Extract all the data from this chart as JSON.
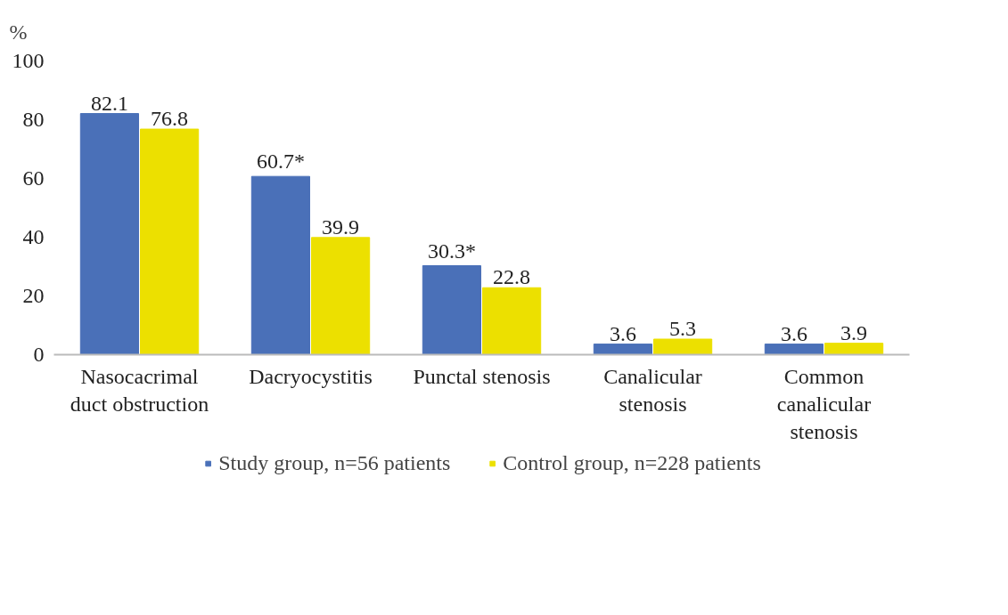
{
  "chart_data": {
    "type": "bar",
    "ylabel": "%",
    "categories": [
      "Nasocacrimal duct obstruction",
      "Dacryocystitis",
      "Punctal stenosis",
      "Canalicular stenosis",
      "Common canalicular stenosis"
    ],
    "series": [
      {
        "name": "Study group, n=56 patients",
        "color": "#4a70b8",
        "values": [
          82.1,
          60.7,
          30.3,
          3.6,
          3.6
        ],
        "value_labels": [
          "82.1",
          "60.7*",
          "30.3*",
          "3.6",
          "3.6"
        ]
      },
      {
        "name": "Control group, n=228 patients",
        "color": "#ece000",
        "values": [
          76.8,
          39.9,
          22.8,
          5.3,
          3.9
        ],
        "value_labels": [
          "76.8",
          "39.9",
          "22.8",
          "5.3",
          "3.9"
        ]
      }
    ],
    "ylim": [
      0,
      100
    ],
    "yticks": [
      0,
      20,
      40,
      60,
      80,
      100
    ],
    "grid": false,
    "legend": "bottom"
  }
}
